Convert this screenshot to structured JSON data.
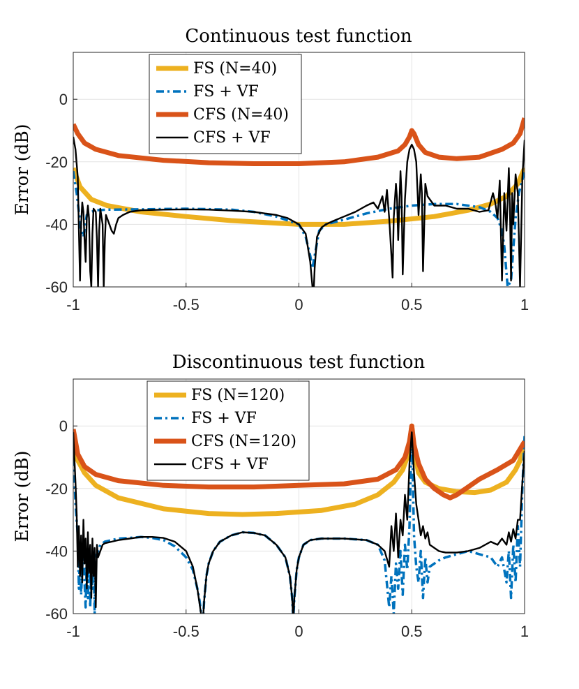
{
  "chart_data": [
    {
      "type": "line",
      "title": "Continuous test function",
      "xlabel": "",
      "ylabel": "Error (dB)",
      "xlim": [
        -1,
        1
      ],
      "ylim": [
        -60,
        15
      ],
      "xticks": [
        -1,
        -0.5,
        0,
        0.5,
        1
      ],
      "yticks": [
        -60,
        -40,
        -20,
        0
      ],
      "xtick_labels": [
        "-1",
        "-0.5",
        "0",
        "0.5",
        "1"
      ],
      "ytick_labels": [
        "-60",
        "-40",
        "-20",
        "0"
      ],
      "grid": true,
      "legend_position": "top-left",
      "series": [
        {
          "name": "FS (N=40)",
          "color": "#EDB120",
          "style": "solid-thick",
          "x": [
            -1,
            -0.97,
            -0.92,
            -0.85,
            -0.7,
            -0.5,
            -0.3,
            -0.1,
            0,
            0.2,
            0.4,
            0.6,
            0.75,
            0.85,
            0.92,
            0.97,
            1
          ],
          "y": [
            -22,
            -28,
            -32,
            -34,
            -36,
            -37.5,
            -38.8,
            -39.6,
            -40,
            -40,
            -39,
            -37.5,
            -35.5,
            -33.5,
            -31,
            -27,
            -22
          ]
        },
        {
          "name": "FS + VF",
          "color": "#0072BD",
          "style": "dashdot",
          "x": [
            -1,
            -0.985,
            -0.965,
            -0.955,
            -0.94,
            -0.92,
            -0.9,
            -0.85,
            -0.7,
            -0.5,
            -0.3,
            -0.2,
            -0.1,
            0,
            0.03,
            0.05,
            0.06,
            0.07,
            0.09,
            0.12,
            0.2,
            0.3,
            0.4,
            0.5,
            0.6,
            0.7,
            0.8,
            0.85,
            0.88,
            0.9,
            0.91,
            0.925,
            0.94,
            0.95,
            0.96,
            0.975,
            1
          ],
          "y": [
            -23,
            -30,
            -42,
            -44,
            -37,
            -36,
            -35.5,
            -35.3,
            -35.2,
            -35,
            -35.3,
            -36,
            -37.5,
            -40,
            -44,
            -50,
            -54,
            -50,
            -42,
            -40,
            -38.5,
            -36.5,
            -35,
            -34,
            -33.5,
            -33.5,
            -34.5,
            -36,
            -38,
            -42,
            -47,
            -60,
            -58,
            -48,
            -38,
            -30,
            -23
          ]
        },
        {
          "name": "CFS (N=40)",
          "color": "#D95319",
          "style": "solid-thick",
          "x": [
            -1,
            -0.98,
            -0.95,
            -0.9,
            -0.8,
            -0.6,
            -0.4,
            -0.2,
            0,
            0.2,
            0.35,
            0.44,
            0.47,
            0.49,
            0.5,
            0.51,
            0.53,
            0.56,
            0.62,
            0.7,
            0.8,
            0.9,
            0.95,
            0.98,
            1
          ],
          "y": [
            -8,
            -11,
            -14,
            -16,
            -18,
            -19.5,
            -20.3,
            -20.6,
            -20.6,
            -20,
            -18.5,
            -16.5,
            -14.5,
            -12,
            -10,
            -11,
            -14.5,
            -17,
            -18.5,
            -19,
            -18.5,
            -16,
            -14,
            -11,
            -6
          ]
        },
        {
          "name": "CFS + VF",
          "color": "#000000",
          "style": "solid-thin",
          "x": [
            -1,
            -0.99,
            -0.98,
            -0.975,
            -0.97,
            -0.965,
            -0.96,
            -0.955,
            -0.95,
            -0.945,
            -0.94,
            -0.935,
            -0.93,
            -0.925,
            -0.92,
            -0.915,
            -0.91,
            -0.9,
            -0.895,
            -0.89,
            -0.885,
            -0.88,
            -0.87,
            -0.865,
            -0.86,
            -0.855,
            -0.85,
            -0.84,
            -0.83,
            -0.82,
            -0.81,
            -0.8,
            -0.78,
            -0.75,
            -0.7,
            -0.6,
            -0.5,
            -0.4,
            -0.3,
            -0.2,
            -0.1,
            -0.05,
            0,
            0.03,
            0.05,
            0.06,
            0.065,
            0.07,
            0.08,
            0.1,
            0.12,
            0.15,
            0.2,
            0.25,
            0.3,
            0.33,
            0.35,
            0.37,
            0.38,
            0.39,
            0.4,
            0.41,
            0.415,
            0.42,
            0.43,
            0.435,
            0.44,
            0.45,
            0.455,
            0.46,
            0.47,
            0.48,
            0.49,
            0.5,
            0.51,
            0.52,
            0.53,
            0.54,
            0.545,
            0.55,
            0.56,
            0.57,
            0.58,
            0.6,
            0.65,
            0.7,
            0.75,
            0.8,
            0.84,
            0.86,
            0.87,
            0.88,
            0.89,
            0.9,
            0.91,
            0.92,
            0.93,
            0.935,
            0.94,
            0.945,
            0.95,
            0.96,
            0.97,
            0.98,
            0.99,
            1
          ],
          "y": [
            -12,
            -16,
            -25,
            -42,
            -58,
            -40,
            -33,
            -36,
            -45,
            -52,
            -38,
            -34,
            -38,
            -55,
            -60,
            -43,
            -35,
            -36,
            -45,
            -60,
            -42,
            -35,
            -40,
            -60,
            -45,
            -37,
            -38,
            -40,
            -42,
            -43,
            -40,
            -38,
            -37,
            -36,
            -35.5,
            -35.3,
            -35.2,
            -35.3,
            -35.6,
            -36,
            -37,
            -38,
            -40,
            -43,
            -52,
            -60,
            -62,
            -54,
            -44,
            -41,
            -40,
            -39,
            -37.5,
            -36,
            -34,
            -33,
            -35,
            -31,
            -36,
            -29,
            -38,
            -50,
            -57,
            -38,
            -27,
            -32,
            -45,
            -23,
            -31,
            -56,
            -32,
            -20,
            -16,
            -14.5,
            -16,
            -20,
            -37,
            -24,
            -30,
            -55,
            -27,
            -31,
            -32,
            -34,
            -34,
            -35,
            -35,
            -36,
            -35.5,
            -30,
            -33,
            -38,
            -26,
            -58,
            -30,
            -42,
            -22,
            -35,
            -58,
            -30,
            -40,
            -24,
            -30,
            -60,
            -25,
            -13
          ]
        }
      ]
    },
    {
      "type": "line",
      "title": "Discontinuous test function",
      "xlabel": "",
      "ylabel": "Error (dB)",
      "xlim": [
        -1,
        1
      ],
      "ylim": [
        -60,
        15
      ],
      "xticks": [
        -1,
        -0.5,
        0,
        0.5,
        1
      ],
      "yticks": [
        -60,
        -40,
        -20,
        0
      ],
      "xtick_labels": [
        "-1",
        "-0.5",
        "0",
        "0.5",
        "1"
      ],
      "ytick_labels": [
        "-60",
        "-40",
        "-20",
        "0"
      ],
      "grid": true,
      "legend_position": "top-left",
      "series": [
        {
          "name": "FS (N=120)",
          "color": "#EDB120",
          "style": "solid-thick",
          "x": [
            -1,
            -0.98,
            -0.95,
            -0.9,
            -0.8,
            -0.6,
            -0.4,
            -0.25,
            -0.1,
            0.1,
            0.25,
            0.35,
            0.42,
            0.46,
            0.48,
            0.49,
            0.5,
            0.51,
            0.53,
            0.56,
            0.62,
            0.7,
            0.78,
            0.85,
            0.92,
            0.96,
            0.98,
            1
          ],
          "y": [
            -5,
            -11,
            -15,
            -19,
            -23,
            -26.5,
            -28,
            -28.3,
            -28,
            -27,
            -25,
            -22,
            -18,
            -14,
            -10,
            -6,
            0,
            -8,
            -15,
            -18,
            -20,
            -21,
            -21.3,
            -20.5,
            -18,
            -14,
            -11,
            -6
          ]
        },
        {
          "name": "FS + VF",
          "color": "#0072BD",
          "style": "dashdot",
          "x": [
            -1,
            -0.99,
            -0.98,
            -0.975,
            -0.97,
            -0.965,
            -0.96,
            -0.955,
            -0.95,
            -0.945,
            -0.94,
            -0.935,
            -0.93,
            -0.925,
            -0.92,
            -0.915,
            -0.91,
            -0.905,
            -0.9,
            -0.89,
            -0.88,
            -0.86,
            -0.83,
            -0.8,
            -0.75,
            -0.7,
            -0.65,
            -0.6,
            -0.55,
            -0.5,
            -0.47,
            -0.45,
            -0.44,
            -0.43,
            -0.425,
            -0.42,
            -0.41,
            -0.4,
            -0.38,
            -0.35,
            -0.3,
            -0.25,
            -0.2,
            -0.15,
            -0.1,
            -0.06,
            -0.04,
            -0.03,
            -0.025,
            -0.02,
            -0.01,
            0,
            0.02,
            0.05,
            0.1,
            0.2,
            0.3,
            0.35,
            0.38,
            0.4,
            0.41,
            0.42,
            0.43,
            0.44,
            0.45,
            0.46,
            0.47,
            0.48,
            0.49,
            0.5,
            0.51,
            0.52,
            0.53,
            0.54,
            0.55,
            0.56,
            0.57,
            0.58,
            0.6,
            0.62,
            0.65,
            0.7,
            0.75,
            0.8,
            0.85,
            0.88,
            0.9,
            0.92,
            0.93,
            0.94,
            0.95,
            0.96,
            0.97,
            0.98,
            0.99,
            1
          ],
          "y": [
            -5,
            -25,
            -35,
            -52,
            -40,
            -54,
            -45,
            -38,
            -50,
            -58,
            -42,
            -55,
            -40,
            -58,
            -45,
            -52,
            -40,
            -60,
            -42,
            -40,
            -38,
            -37,
            -36.5,
            -36,
            -35.8,
            -35.5,
            -35.8,
            -36.5,
            -38.5,
            -42,
            -46,
            -52,
            -56,
            -62,
            -62,
            -56,
            -48,
            -44,
            -40,
            -37,
            -35,
            -34,
            -34.2,
            -35,
            -38,
            -42,
            -48,
            -55,
            -62,
            -55,
            -46,
            -42,
            -38,
            -36.5,
            -36,
            -36,
            -36.5,
            -38,
            -43,
            -58,
            -48,
            -60,
            -44,
            -52,
            -40,
            -54,
            -38,
            -46,
            -32,
            0,
            -35,
            -45,
            -50,
            -40,
            -55,
            -42,
            -50,
            -45,
            -44,
            -43,
            -42,
            -41,
            -40,
            -41,
            -42,
            -45,
            -42,
            -50,
            -40,
            -55,
            -38,
            -50,
            -32,
            -45,
            -20,
            -3
          ]
        },
        {
          "name": "CFS (N=120)",
          "color": "#D95319",
          "style": "solid-thick",
          "x": [
            -1,
            -0.98,
            -0.95,
            -0.9,
            -0.8,
            -0.6,
            -0.4,
            -0.2,
            0,
            0.2,
            0.35,
            0.43,
            0.47,
            0.49,
            0.5,
            0.51,
            0.53,
            0.56,
            0.6,
            0.64,
            0.67,
            0.7,
            0.75,
            0.8,
            0.88,
            0.95,
            1
          ],
          "y": [
            -1,
            -9,
            -13,
            -15.5,
            -17.5,
            -19,
            -19.5,
            -19.5,
            -19,
            -18.5,
            -17,
            -14,
            -10,
            -5,
            0,
            -6,
            -12,
            -17,
            -20,
            -22,
            -23,
            -22,
            -19.5,
            -17,
            -14,
            -11,
            -5
          ]
        },
        {
          "name": "CFS + VF",
          "color": "#000000",
          "style": "solid-thin",
          "x": [
            -1,
            -0.99,
            -0.985,
            -0.98,
            -0.975,
            -0.97,
            -0.965,
            -0.96,
            -0.955,
            -0.95,
            -0.945,
            -0.94,
            -0.935,
            -0.93,
            -0.925,
            -0.92,
            -0.915,
            -0.91,
            -0.905,
            -0.9,
            -0.895,
            -0.89,
            -0.88,
            -0.87,
            -0.86,
            -0.83,
            -0.8,
            -0.75,
            -0.7,
            -0.65,
            -0.6,
            -0.55,
            -0.5,
            -0.47,
            -0.45,
            -0.44,
            -0.43,
            -0.425,
            -0.42,
            -0.41,
            -0.4,
            -0.38,
            -0.35,
            -0.3,
            -0.25,
            -0.2,
            -0.15,
            -0.1,
            -0.06,
            -0.04,
            -0.03,
            -0.025,
            -0.02,
            -0.01,
            0,
            0.02,
            0.05,
            0.1,
            0.2,
            0.3,
            0.35,
            0.38,
            0.4,
            0.41,
            0.42,
            0.43,
            0.44,
            0.45,
            0.46,
            0.47,
            0.48,
            0.49,
            0.5,
            0.51,
            0.52,
            0.53,
            0.54,
            0.55,
            0.56,
            0.57,
            0.58,
            0.6,
            0.62,
            0.65,
            0.7,
            0.75,
            0.8,
            0.85,
            0.88,
            0.9,
            0.92,
            0.93,
            0.94,
            0.95,
            0.96,
            0.97,
            0.98,
            0.99,
            1
          ],
          "y": [
            -2,
            -18,
            -28,
            -45,
            -32,
            -48,
            -35,
            -50,
            -30,
            -44,
            -36,
            -52,
            -34,
            -47,
            -38,
            -55,
            -36,
            -48,
            -39,
            -58,
            -38,
            -42,
            -40,
            -38,
            -37.5,
            -37,
            -36.5,
            -36,
            -35.5,
            -35.5,
            -35.8,
            -37,
            -40,
            -45,
            -52,
            -57,
            -62,
            -62,
            -56,
            -48,
            -44,
            -40,
            -37,
            -35,
            -34,
            -34.2,
            -35,
            -38,
            -42,
            -48,
            -55,
            -62,
            -55,
            -46,
            -42,
            -38,
            -36.5,
            -36,
            -36,
            -36.5,
            -38,
            -40,
            -45,
            -32,
            -40,
            -28,
            -42,
            -30,
            -35,
            -22,
            -30,
            -12,
            -2,
            -15,
            -25,
            -30,
            -35,
            -32,
            -36,
            -34,
            -38,
            -39,
            -40,
            -40.5,
            -40.5,
            -40,
            -39,
            -37,
            -38,
            -36,
            -38,
            -34,
            -37,
            -33,
            -36,
            -30,
            -30,
            -18,
            -8
          ]
        }
      ]
    }
  ]
}
